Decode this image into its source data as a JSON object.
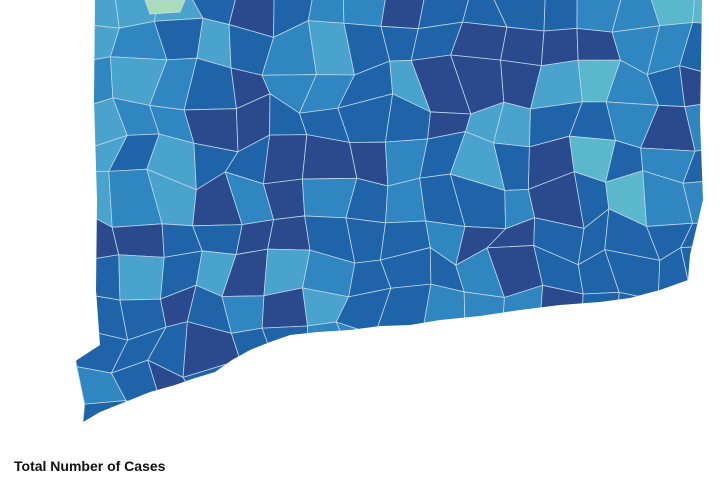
{
  "caption": "Total Number of Cases"
}
